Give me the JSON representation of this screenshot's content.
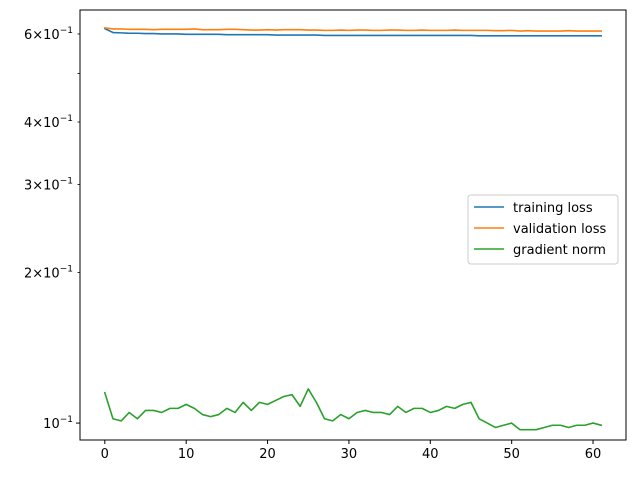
{
  "chart_data": {
    "type": "line",
    "title": "",
    "xlabel": "",
    "ylabel": "",
    "xlim": [
      -3.05,
      64.05
    ],
    "ylim": [
      0.0925,
      0.67
    ],
    "yscale": "log",
    "grid": false,
    "legend_position": "center-right",
    "x_ticks": [
      0,
      10,
      20,
      30,
      40,
      50,
      60
    ],
    "y_ticks_major": [
      {
        "value": 0.1,
        "label": "10",
        "exp": "−1"
      }
    ],
    "y_ticks_minor": [
      {
        "value": 0.2,
        "mantissa": "2",
        "base": "10",
        "exp": "−1"
      },
      {
        "value": 0.3,
        "mantissa": "3",
        "base": "10",
        "exp": "−1"
      },
      {
        "value": 0.4,
        "mantissa": "4",
        "base": "10",
        "exp": "−1"
      },
      {
        "value": 0.5,
        "mantissa": "",
        "base": "",
        "exp": ""
      },
      {
        "value": 0.6,
        "mantissa": "6",
        "base": "10",
        "exp": "−1"
      }
    ],
    "x": [
      0,
      1,
      2,
      3,
      4,
      5,
      6,
      7,
      8,
      9,
      10,
      11,
      12,
      13,
      14,
      15,
      16,
      17,
      18,
      19,
      20,
      21,
      22,
      23,
      24,
      25,
      26,
      27,
      28,
      29,
      30,
      31,
      32,
      33,
      34,
      35,
      36,
      37,
      38,
      39,
      40,
      41,
      42,
      43,
      44,
      45,
      46,
      47,
      48,
      49,
      50,
      51,
      52,
      53,
      54,
      55,
      56,
      57,
      58,
      59,
      60,
      61
    ],
    "series": [
      {
        "name": "training loss",
        "color": "#1f77b4",
        "values": [
          0.615,
          0.604,
          0.603,
          0.602,
          0.602,
          0.601,
          0.601,
          0.6,
          0.6,
          0.6,
          0.599,
          0.599,
          0.599,
          0.599,
          0.599,
          0.598,
          0.598,
          0.598,
          0.598,
          0.598,
          0.598,
          0.597,
          0.597,
          0.597,
          0.597,
          0.597,
          0.597,
          0.596,
          0.596,
          0.596,
          0.596,
          0.596,
          0.596,
          0.596,
          0.596,
          0.596,
          0.596,
          0.596,
          0.596,
          0.596,
          0.596,
          0.596,
          0.596,
          0.596,
          0.596,
          0.596,
          0.595,
          0.595,
          0.595,
          0.595,
          0.595,
          0.595,
          0.595,
          0.595,
          0.595,
          0.595,
          0.595,
          0.595,
          0.595,
          0.595,
          0.595,
          0.595
        ]
      },
      {
        "name": "validation loss",
        "color": "#ff7f0e",
        "values": [
          0.617,
          0.614,
          0.614,
          0.613,
          0.613,
          0.613,
          0.612,
          0.613,
          0.613,
          0.613,
          0.613,
          0.614,
          0.612,
          0.612,
          0.612,
          0.613,
          0.613,
          0.612,
          0.611,
          0.611,
          0.612,
          0.611,
          0.612,
          0.612,
          0.612,
          0.611,
          0.611,
          0.61,
          0.61,
          0.611,
          0.61,
          0.611,
          0.611,
          0.61,
          0.61,
          0.611,
          0.611,
          0.61,
          0.61,
          0.611,
          0.61,
          0.61,
          0.61,
          0.611,
          0.61,
          0.61,
          0.61,
          0.61,
          0.609,
          0.609,
          0.61,
          0.608,
          0.609,
          0.608,
          0.608,
          0.608,
          0.608,
          0.609,
          0.608,
          0.608,
          0.608,
          0.608
        ]
      },
      {
        "name": "gradient norm",
        "color": "#2ca02c",
        "values": [
          0.115,
          0.102,
          0.101,
          0.105,
          0.102,
          0.106,
          0.106,
          0.105,
          0.107,
          0.107,
          0.109,
          0.107,
          0.104,
          0.103,
          0.104,
          0.107,
          0.105,
          0.11,
          0.106,
          0.11,
          0.109,
          0.111,
          0.113,
          0.114,
          0.108,
          0.117,
          0.11,
          0.102,
          0.101,
          0.104,
          0.102,
          0.105,
          0.106,
          0.105,
          0.105,
          0.104,
          0.108,
          0.105,
          0.107,
          0.107,
          0.105,
          0.106,
          0.108,
          0.107,
          0.109,
          0.11,
          0.102,
          0.1,
          0.098,
          0.099,
          0.1,
          0.097,
          0.097,
          0.097,
          0.098,
          0.099,
          0.099,
          0.098,
          0.099,
          0.099,
          0.1,
          0.099
        ]
      }
    ]
  }
}
